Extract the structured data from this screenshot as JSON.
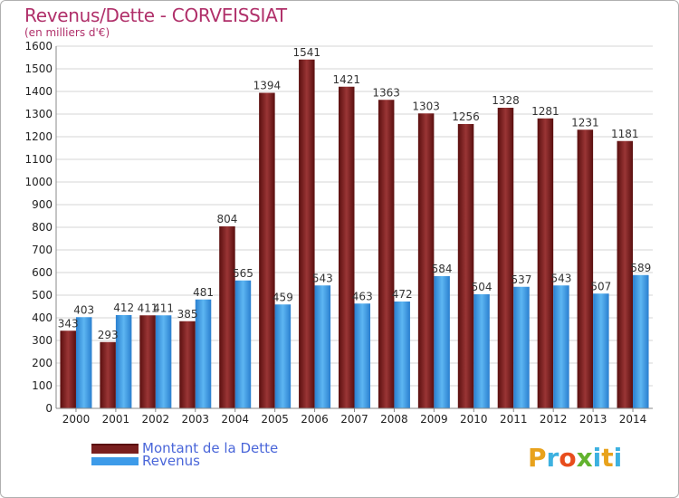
{
  "title": "Revenus/Dette - CORVEISSIAT",
  "subtitle": "(en milliers d'€)",
  "legend": [
    {
      "label": "Montant de la Dette",
      "color": "#7a1f1f"
    },
    {
      "label": "Revenus",
      "color": "#3d9be9"
    }
  ],
  "logo": {
    "text": "Proxiti",
    "colors": [
      "#e8a21c",
      "#3db1e0",
      "#e84d1c",
      "#62b32e",
      "#3db1e0",
      "#e8a21c",
      "#3db1e0"
    ]
  },
  "chart_data": {
    "type": "bar",
    "categories": [
      "2000",
      "2001",
      "2002",
      "2003",
      "2004",
      "2005",
      "2006",
      "2007",
      "2008",
      "2009",
      "2010",
      "2011",
      "2012",
      "2013",
      "2014"
    ],
    "series": [
      {
        "name": "Montant de la Dette",
        "color": "#7a1f1f",
        "values": [
          343,
          293,
          411,
          385,
          804,
          1394,
          1541,
          1421,
          1363,
          1303,
          1256,
          1328,
          1281,
          1231,
          1181
        ]
      },
      {
        "name": "Revenus",
        "color": "#3d9be9",
        "values": [
          403,
          412,
          411,
          481,
          565,
          459,
          543,
          463,
          472,
          584,
          504,
          537,
          543,
          507,
          589
        ]
      }
    ],
    "ylim": [
      0,
      1600
    ],
    "yticks": [
      0,
      100,
      200,
      300,
      400,
      500,
      600,
      700,
      800,
      900,
      1000,
      1100,
      1200,
      1300,
      1400,
      1500,
      1600
    ],
    "grid": true,
    "legend_position": "bottom-left"
  }
}
